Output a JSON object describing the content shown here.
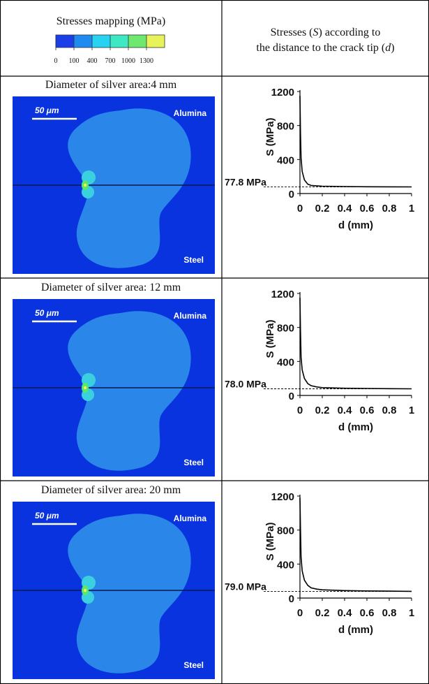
{
  "legend": {
    "title": "Stresses mapping (MPa)",
    "ticks": [
      "0",
      "100",
      "400",
      "700",
      "1000",
      "1300"
    ],
    "colors": [
      "#1a3fe8",
      "#1f8bf0",
      "#28d3f2",
      "#3de8c2",
      "#6fe86f",
      "#e8f25a"
    ]
  },
  "header_right": {
    "line1_pre": "Stresses (",
    "line1_sym": "S",
    "line1_post": ") according to",
    "line2_pre": "the distance to the crack tip (",
    "line2_sym": "d",
    "line2_post": ")"
  },
  "rows": [
    {
      "caption": "Diameter of silver area:4 mm",
      "scale_label": "50 μm",
      "top_label": "Alumina",
      "bottom_label": "Steel",
      "annotation": "77.8 MPa"
    },
    {
      "caption": "Diameter of silver area: 12 mm",
      "scale_label": "50 μm",
      "top_label": "Alumina",
      "bottom_label": "Steel",
      "annotation": "78.0 MPa"
    },
    {
      "caption": "Diameter of silver area: 20 mm",
      "scale_label": "50 μm",
      "top_label": "Alumina",
      "bottom_label": "Steel",
      "annotation": "79.0 MPa"
    }
  ],
  "colors": {
    "map_background": "#0a33e0",
    "blob_fill": "#2a86e8",
    "hotspot_outer": "#3ad0e0",
    "hotspot_inner": "#59e86a",
    "hotspot_core": "#f2f25a"
  },
  "chart_data": [
    {
      "type": "line",
      "xlabel": "d (mm)",
      "ylabel": "S (MPa)",
      "xlim": [
        0,
        1
      ],
      "ylim": [
        0,
        1200
      ],
      "x_ticks": [
        "0",
        "0.2",
        "0.4",
        "0.6",
        "0.8",
        "1"
      ],
      "y_ticks": [
        "0",
        "400",
        "800",
        "1200"
      ],
      "reference_value": 77.8,
      "series": [
        {
          "x": [
            0,
            0.005,
            0.01,
            0.02,
            0.04,
            0.07,
            0.1,
            0.2,
            0.4,
            0.6,
            0.8,
            1.0
          ],
          "y": [
            1150,
            700,
            420,
            260,
            160,
            110,
            95,
            86,
            82,
            80,
            79,
            78
          ]
        }
      ]
    },
    {
      "type": "line",
      "xlabel": "d (mm)",
      "ylabel": "S (MPa)",
      "xlim": [
        0,
        1
      ],
      "ylim": [
        0,
        1200
      ],
      "x_ticks": [
        "0",
        "0.2",
        "0.4",
        "0.6",
        "0.8",
        "1"
      ],
      "y_ticks": [
        "0",
        "400",
        "800",
        "1200"
      ],
      "reference_value": 78.0,
      "series": [
        {
          "x": [
            0,
            0.005,
            0.01,
            0.02,
            0.04,
            0.07,
            0.1,
            0.15,
            0.2,
            0.4,
            0.6,
            0.8,
            1.0
          ],
          "y": [
            1150,
            750,
            450,
            300,
            200,
            140,
            115,
            100,
            92,
            85,
            82,
            80,
            78
          ]
        }
      ]
    },
    {
      "type": "line",
      "xlabel": "d (mm)",
      "ylabel": "S (MPa)",
      "xlim": [
        0,
        1
      ],
      "ylim": [
        0,
        1200
      ],
      "x_ticks": [
        "0",
        "0.2",
        "0.4",
        "0.6",
        "0.8",
        "1"
      ],
      "y_ticks": [
        "0",
        "400",
        "800",
        "1200"
      ],
      "reference_value": 79.0,
      "series": [
        {
          "x": [
            0,
            0.005,
            0.01,
            0.02,
            0.04,
            0.07,
            0.1,
            0.15,
            0.2,
            0.4,
            0.6,
            0.8,
            1.0
          ],
          "y": [
            1180,
            800,
            480,
            320,
            210,
            150,
            120,
            105,
            97,
            88,
            84,
            81,
            79
          ]
        }
      ]
    }
  ]
}
